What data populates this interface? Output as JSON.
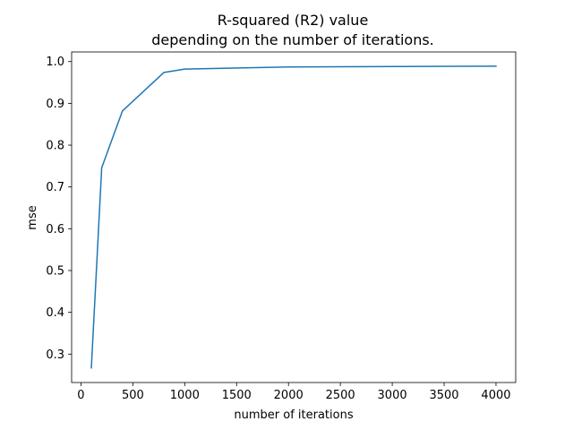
{
  "chart_data": {
    "type": "line",
    "title": "R-squared (R2) value",
    "subtitle": "depending on the number of iterations.",
    "xlabel": "number of iterations",
    "ylabel": "mse",
    "xlim": [
      -90,
      4190
    ],
    "ylim": [
      0.232,
      1.023
    ],
    "x_ticks": [
      0,
      500,
      1000,
      1500,
      2000,
      2500,
      3000,
      3500,
      4000
    ],
    "y_ticks": [
      0.3,
      0.4,
      0.5,
      0.6,
      0.7,
      0.8,
      0.9,
      1.0
    ],
    "y_tick_labels": [
      "0.3",
      "0.4",
      "0.5",
      "0.6",
      "0.7",
      "0.8",
      "0.9",
      "1.0"
    ],
    "grid": false,
    "series": [
      {
        "color": "#1f77b4",
        "x": [
          100,
          200,
          400,
          800,
          1000,
          2000,
          4000
        ],
        "y": [
          0.267,
          0.746,
          0.882,
          0.974,
          0.982,
          0.987,
          0.989
        ]
      }
    ]
  }
}
